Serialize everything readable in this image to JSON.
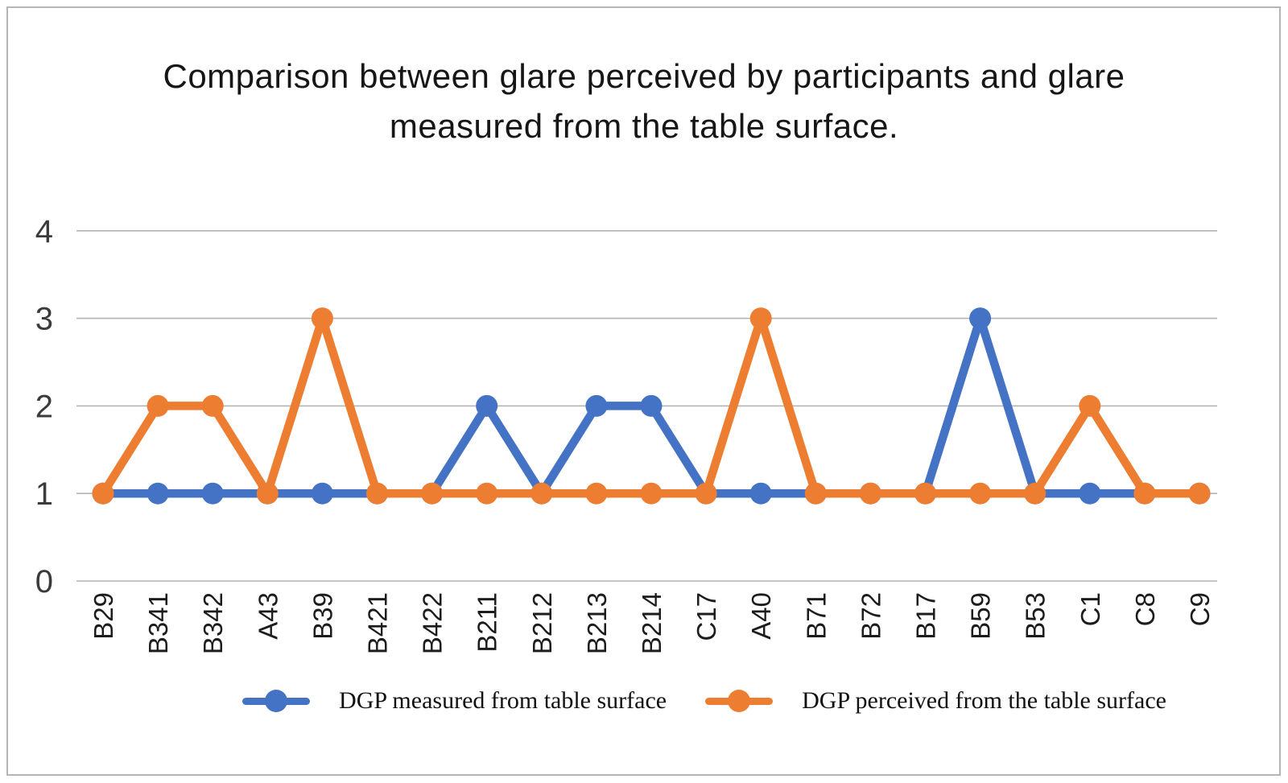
{
  "title": "Comparison between glare perceived by participants and glare measured from the table surface.",
  "chart_data": {
    "type": "line",
    "title": "Comparison between glare perceived by participants and glare measured from the table surface.",
    "categories": [
      "B29",
      "B341",
      "B342",
      "A43",
      "B39",
      "B421",
      "B422",
      "B211",
      "B212",
      "B213",
      "B214",
      "C17",
      "A40",
      "B71",
      "B72",
      "B17",
      "B59",
      "B53",
      "C1",
      "C8",
      "C9"
    ],
    "series": [
      {
        "name": "DGP measured from table surface",
        "color": "#4472C4",
        "values": [
          1,
          1,
          1,
          1,
          1,
          1,
          1,
          2,
          1,
          2,
          2,
          1,
          1,
          1,
          1,
          1,
          3,
          1,
          1,
          1,
          1
        ]
      },
      {
        "name": "DGP perceived from the table surface",
        "color": "#ED7D31",
        "values": [
          1,
          2,
          2,
          1,
          3,
          1,
          1,
          1,
          1,
          1,
          1,
          1,
          3,
          1,
          1,
          1,
          1,
          1,
          2,
          1,
          1
        ]
      }
    ],
    "xlabel": "",
    "ylabel": "",
    "ylim": [
      0,
      4
    ],
    "yticks": [
      0,
      1,
      2,
      3,
      4
    ],
    "grid": true,
    "legend_position": "bottom",
    "x_tick_rotation_degrees": 90
  },
  "colors": {
    "series_blue": "#4472C4",
    "series_orange": "#ED7D31",
    "gridline": "#b3b3b3",
    "y_tick_label": "#3b3b3b",
    "x_tick_label": "#1c1c1c",
    "title_text": "#161616",
    "figure_border": "#b5b5b5"
  }
}
